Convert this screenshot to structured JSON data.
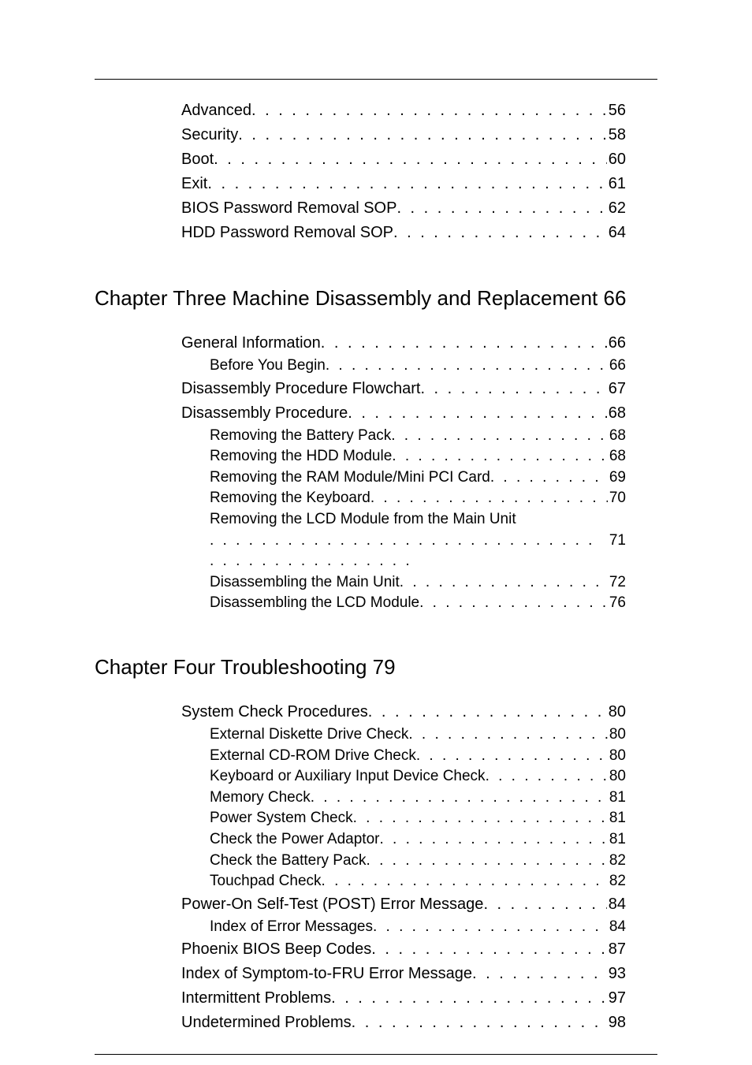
{
  "rules": {
    "color": "#000000"
  },
  "typography": {
    "chapter_title_fontsize": 26,
    "main_entry_fontsize": 20,
    "sub_entry_fontsize": 19,
    "text_color": "#000000",
    "background_color": "#ffffff"
  },
  "top_entries": [
    {
      "label": "Advanced",
      "page": "56"
    },
    {
      "label": "Security",
      "page": "58"
    },
    {
      "label": "Boot",
      "page": "60"
    },
    {
      "label": "Exit",
      "page": "61"
    },
    {
      "label": "BIOS Password Removal SOP",
      "page": "62"
    },
    {
      "label": "HDD Password Removal SOP",
      "page": "64"
    }
  ],
  "chapter3": {
    "title": "Chapter Three Machine Disassembly and Replacement 66",
    "entries": [
      {
        "label": "General Information",
        "page": "66",
        "sub": false
      },
      {
        "label": "Before You Begin",
        "page": "66",
        "sub": true
      },
      {
        "label": "Disassembly Procedure Flowchart",
        "page": "67",
        "sub": false
      },
      {
        "label": "Disassembly Procedure",
        "page": "68",
        "sub": false
      },
      {
        "label": "Removing the Battery Pack",
        "page": "68",
        "sub": true
      },
      {
        "label": "Removing the HDD Module",
        "page": "68",
        "sub": true
      },
      {
        "label": "Removing the RAM Module/Mini PCI Card",
        "page": "69",
        "sub": true,
        "tight": true
      },
      {
        "label": "Removing the Keyboard",
        "page": "70",
        "sub": true
      },
      {
        "label": "Removing the LCD Module from the Main Unit",
        "page": "71",
        "sub": true,
        "wrap": true
      },
      {
        "label": "Disassembling the Main Unit",
        "page": "72",
        "sub": true
      },
      {
        "label": "Disassembling the LCD Module",
        "page": "76",
        "sub": true
      }
    ]
  },
  "chapter4": {
    "title": "Chapter Four Troubleshooting 79",
    "entries": [
      {
        "label": "System Check Procedures",
        "page": "80",
        "sub": false
      },
      {
        "label": "External Diskette Drive Check",
        "page": "80",
        "sub": true
      },
      {
        "label": "External CD-ROM Drive Check",
        "page": "80",
        "sub": true
      },
      {
        "label": "Keyboard or Auxiliary Input Device Check",
        "page": "80",
        "sub": true,
        "tight": true
      },
      {
        "label": "Memory Check",
        "page": "81",
        "sub": true
      },
      {
        "label": "Power System Check",
        "page": "81",
        "sub": true
      },
      {
        "label": "Check the Power Adaptor",
        "page": "81",
        "sub": true
      },
      {
        "label": "Check the Battery Pack",
        "page": "82",
        "sub": true
      },
      {
        "label": "Touchpad Check",
        "page": "82",
        "sub": true
      },
      {
        "label": "Power-On Self-Test (POST) Error Message",
        "page": "84",
        "sub": false,
        "tight": true
      },
      {
        "label": "Index of Error Messages",
        "page": "84",
        "sub": true
      },
      {
        "label": "Phoenix BIOS Beep Codes",
        "page": "87",
        "sub": false
      },
      {
        "label": "Index of Symptom-to-FRU Error Message",
        "page": "93",
        "sub": false,
        "tight": true
      },
      {
        "label": "Intermittent Problems",
        "page": "97",
        "sub": false
      },
      {
        "label": "Undetermined Problems",
        "page": "98",
        "sub": false
      }
    ]
  }
}
